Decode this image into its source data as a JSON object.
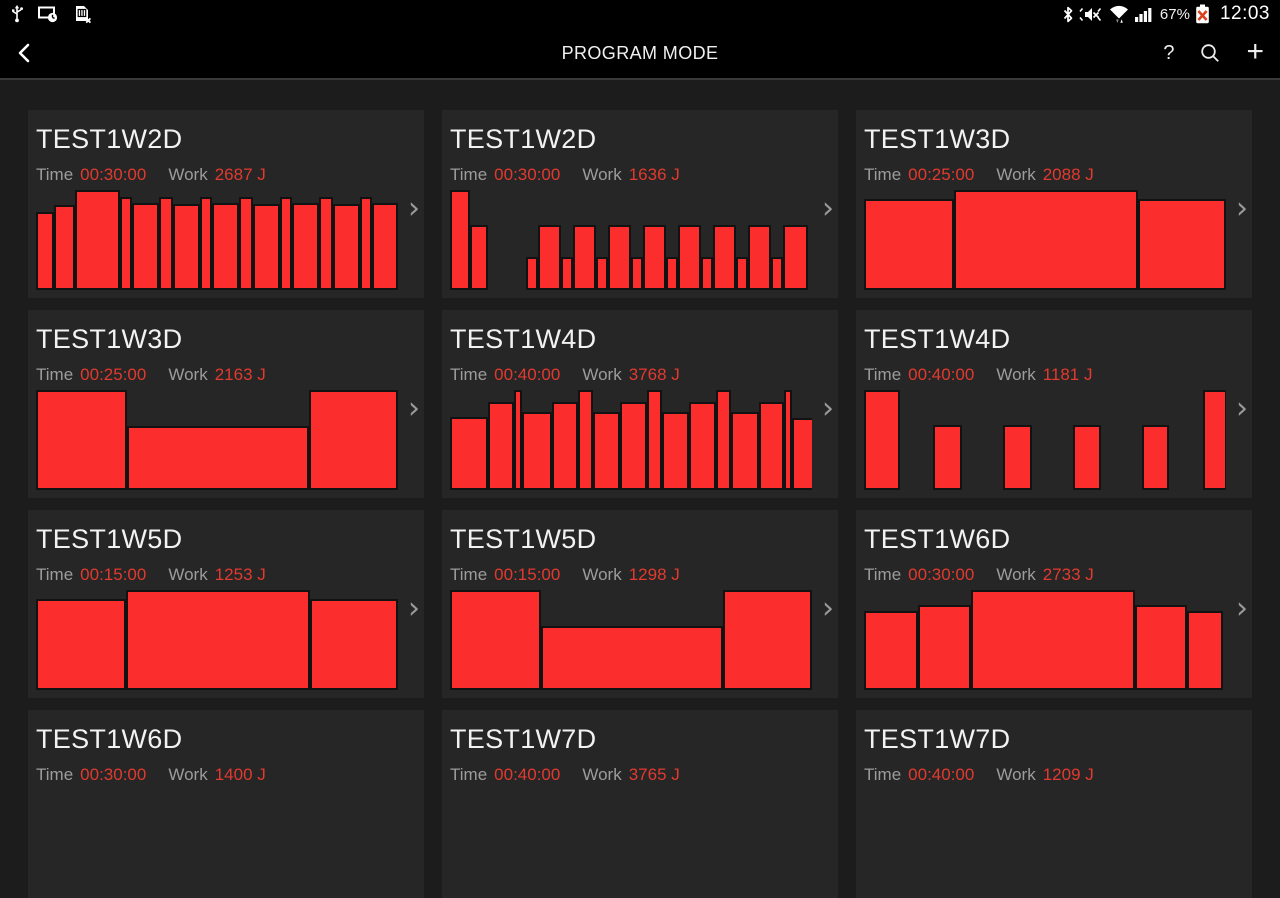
{
  "status_bar": {
    "left_icons": [
      "usb-icon",
      "smart-stay-icon",
      "no-sim-icon"
    ],
    "right_icons": [
      "bluetooth-icon",
      "mute-vibrate-icon",
      "wifi-icon",
      "signal-strength-icon",
      "battery-error-icon"
    ],
    "battery_percent": "67%",
    "clock": "12:03"
  },
  "action_bar": {
    "title": "PROGRAM MODE",
    "help_label": "?",
    "plus_label": "+"
  },
  "labels": {
    "time": "Time",
    "work": "Work"
  },
  "colors": {
    "page_bg": "#1c1c1c",
    "card_bg": "#262626",
    "bar_fill": "#fb2d2d",
    "bar_border": "#121212",
    "value_red": "#e23a2e"
  },
  "cards": [
    {
      "title": "TEST1W2D",
      "time": "00:30:00",
      "work": "2687 J",
      "bars": [
        [
          18,
          78
        ],
        [
          21,
          85
        ],
        [
          45,
          100
        ],
        [
          12,
          93
        ],
        [
          27,
          87
        ],
        [
          14,
          93
        ],
        [
          27,
          86
        ],
        [
          12,
          93
        ],
        [
          27,
          87
        ],
        [
          14,
          93
        ],
        [
          27,
          86
        ],
        [
          12,
          93
        ],
        [
          27,
          87
        ],
        [
          14,
          93
        ],
        [
          27,
          86
        ],
        [
          12,
          93
        ],
        [
          26,
          87
        ]
      ]
    },
    {
      "title": "TEST1W2D",
      "time": "00:30:00",
      "work": "1636 J",
      "bars": [
        [
          20,
          100
        ],
        [
          18,
          65
        ],
        [
          38,
          0
        ],
        [
          12,
          33
        ],
        [
          23,
          65
        ],
        [
          12,
          33
        ],
        [
          23,
          65
        ],
        [
          12,
          33
        ],
        [
          23,
          65
        ],
        [
          12,
          33
        ],
        [
          23,
          65
        ],
        [
          12,
          33
        ],
        [
          23,
          65
        ],
        [
          12,
          33
        ],
        [
          23,
          65
        ],
        [
          12,
          33
        ],
        [
          23,
          65
        ],
        [
          12,
          33
        ],
        [
          25,
          65
        ]
      ]
    },
    {
      "title": "TEST1W3D",
      "time": "00:25:00",
      "work": "2088 J",
      "bars": [
        [
          90,
          91
        ],
        [
          184,
          100
        ],
        [
          88,
          91
        ]
      ]
    },
    {
      "title": "TEST1W3D",
      "time": "00:25:00",
      "work": "2163 J",
      "bars": [
        [
          91,
          100
        ],
        [
          182,
          64
        ],
        [
          89,
          100
        ]
      ]
    },
    {
      "title": "TEST1W4D",
      "time": "00:40:00",
      "work": "3768 J",
      "bars": [
        [
          38,
          73
        ],
        [
          26,
          88
        ],
        [
          8,
          100
        ],
        [
          30,
          78
        ],
        [
          26,
          88
        ],
        [
          15,
          100
        ],
        [
          27,
          78
        ],
        [
          27,
          88
        ],
        [
          15,
          100
        ],
        [
          27,
          78
        ],
        [
          27,
          88
        ],
        [
          15,
          100
        ],
        [
          28,
          78
        ],
        [
          25,
          88
        ],
        [
          8,
          100
        ],
        [
          22,
          72
        ]
      ]
    },
    {
      "title": "TEST1W4D",
      "time": "00:40:00",
      "work": "1181 J",
      "bars": [
        [
          36,
          100
        ],
        [
          33,
          0
        ],
        [
          29,
          65
        ],
        [
          41,
          0
        ],
        [
          29,
          65
        ],
        [
          41,
          0
        ],
        [
          28,
          65
        ],
        [
          41,
          0
        ],
        [
          27,
          65
        ],
        [
          34,
          0
        ],
        [
          24,
          100
        ]
      ]
    },
    {
      "title": "TEST1W5D",
      "time": "00:15:00",
      "work": "1253 J",
      "bars": [
        [
          90,
          91
        ],
        [
          184,
          100
        ],
        [
          88,
          91
        ]
      ]
    },
    {
      "title": "TEST1W5D",
      "time": "00:15:00",
      "work": "1298 J",
      "bars": [
        [
          91,
          100
        ],
        [
          182,
          64
        ],
        [
          89,
          100
        ]
      ]
    },
    {
      "title": "TEST1W6D",
      "time": "00:30:00",
      "work": "2733 J",
      "bars": [
        [
          54,
          79
        ],
        [
          53,
          85
        ],
        [
          164,
          100
        ],
        [
          52,
          85
        ],
        [
          36,
          79
        ]
      ]
    },
    {
      "title": "TEST1W6D",
      "time": "00:30:00",
      "work": "1400 J",
      "bars": []
    },
    {
      "title": "TEST1W7D",
      "time": "00:40:00",
      "work": "3765 J",
      "bars": []
    },
    {
      "title": "TEST1W7D",
      "time": "00:40:00",
      "work": "1209 J",
      "bars": []
    }
  ]
}
